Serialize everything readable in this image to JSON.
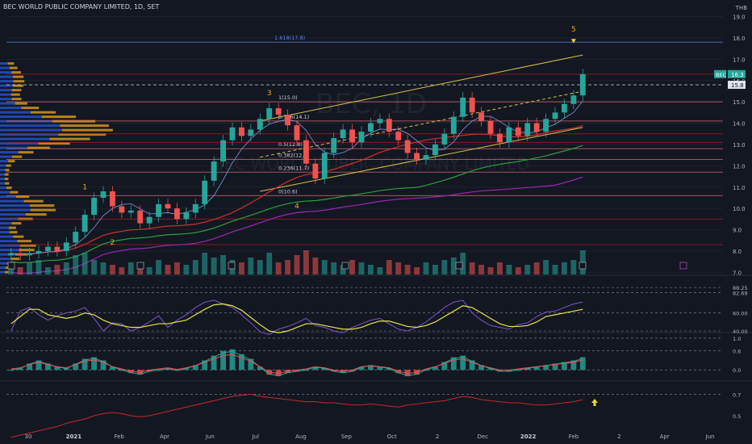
{
  "header": {
    "symbol_title": "BEC WORLD PUBLIC COMPANY LIMITED, 1D, SET",
    "currency": "THB"
  },
  "colors": {
    "bg": "#131722",
    "candle_up": "#26a69a",
    "candle_down": "#ef5350",
    "ma_red": "#d32f2f",
    "ma_green": "#2e9e3e",
    "ma_purple": "#9c27b0",
    "channel": "#d8c24a",
    "rsi": "#7e57c2",
    "rsi_signal": "#e9e44c",
    "fib_label": "#5b8def"
  },
  "watermark": {
    "big": "BEC, 1D",
    "small": "BEC WORLD PUBLIC COMPANY LIMITED"
  },
  "chart_data": {
    "type": "candlestick",
    "symbol": "BEC",
    "interval": "1D",
    "exchange": "SET",
    "y_axis_ticks": [
      "19.0",
      "18.0",
      "17.0",
      "16.0",
      "15.0",
      "14.0",
      "13.0",
      "12.0",
      "11.0",
      "10.0",
      "9.0",
      "8.0",
      "7.0"
    ],
    "ylim": [
      6.9,
      19.4
    ],
    "x_axis_labels": [
      "30",
      "2021",
      "Feb",
      "Apr",
      "Jun",
      "Jul",
      "Aug",
      "Sep",
      "Oct",
      "2",
      "Dec",
      "2022",
      "Feb",
      "2",
      "Apr",
      "Jun"
    ],
    "price_tags": [
      {
        "label": "BEC",
        "value": "16.3"
      },
      {
        "label": "",
        "value": "15.8"
      }
    ],
    "close_series": [
      7.9,
      7.8,
      7.9,
      8.0,
      8.2,
      8.0,
      8.4,
      8.9,
      9.7,
      10.5,
      10.8,
      10.1,
      9.8,
      9.9,
      9.3,
      9.6,
      10.2,
      10.0,
      9.5,
      9.8,
      10.2,
      11.3,
      12.2,
      13.2,
      13.8,
      13.4,
      13.7,
      14.2,
      14.7,
      14.4,
      13.9,
      13.2,
      12.1,
      11.4,
      12.6,
      13.3,
      13.7,
      13.1,
      13.6,
      14.0,
      14.2,
      13.6,
      13.2,
      12.6,
      12.3,
      12.5,
      13.0,
      13.5,
      14.3,
      15.2,
      14.5,
      14.1,
      13.5,
      13.1,
      13.8,
      13.4,
      14.0,
      13.6,
      14.2,
      14.5,
      14.9,
      15.3,
      16.3
    ],
    "fibonacci": [
      {
        "label": "1.618(17.8)",
        "value": 17.8
      },
      {
        "label": "1(15.0)",
        "value": 15.0
      },
      {
        "label": "0.786(14.1)",
        "value": 14.1
      },
      {
        "label": "0.5(12.8)",
        "value": 12.8
      },
      {
        "label": "0.382(12.3)",
        "value": 12.3
      },
      {
        "label": "0.236(11.7)",
        "value": 11.7
      },
      {
        "label": "0(10.6)",
        "value": 10.6
      }
    ],
    "wave_labels": [
      "1",
      "2",
      "3",
      "4",
      "5"
    ],
    "volume": [
      4,
      3,
      5,
      6,
      3,
      4,
      5,
      8,
      9,
      6,
      5,
      4,
      3,
      5,
      4,
      3,
      6,
      4,
      5,
      4,
      6,
      9,
      7,
      8,
      6,
      5,
      7,
      6,
      9,
      5,
      6,
      8,
      10,
      7,
      6,
      5,
      4,
      6,
      5,
      4,
      3,
      6,
      5,
      4,
      3,
      5,
      4,
      6,
      7,
      9,
      5,
      4,
      3,
      5,
      4,
      3,
      4,
      5,
      6,
      4,
      5,
      6,
      10
    ],
    "rsi": {
      "levels": [
        "88.25",
        "82.69",
        "60.00",
        "40.00"
      ],
      "series": [
        40,
        62,
        66,
        58,
        52,
        57,
        60,
        62,
        66,
        54,
        40,
        49,
        48,
        40,
        44,
        50,
        57,
        44,
        52,
        58,
        66,
        72,
        74,
        70,
        66,
        58,
        49,
        39,
        36,
        42,
        45,
        49,
        54,
        46,
        44,
        40,
        38,
        44,
        48,
        52,
        54,
        48,
        42,
        40,
        44,
        50,
        58,
        66,
        72,
        74,
        60,
        52,
        46,
        44,
        42,
        47,
        49,
        56,
        61,
        62,
        66,
        70,
        72
      ],
      "signal": [
        48,
        56,
        64,
        64,
        58,
        56,
        54,
        56,
        60,
        58,
        52,
        48,
        46,
        44,
        44,
        46,
        48,
        48,
        50,
        52,
        58,
        64,
        69,
        70,
        68,
        63,
        55,
        47,
        40,
        38,
        40,
        44,
        48,
        48,
        46,
        44,
        42,
        42,
        44,
        48,
        51,
        51,
        48,
        45,
        44,
        46,
        50,
        56,
        62,
        68,
        66,
        60,
        54,
        48,
        45,
        45,
        46,
        50,
        56,
        58,
        60,
        62,
        64
      ]
    },
    "macd": {
      "levels": [
        "1.0",
        "0.6",
        "0.0"
      ],
      "series": [
        0.0,
        0.05,
        0.2,
        0.3,
        0.2,
        0.1,
        0.05,
        0.2,
        0.35,
        0.4,
        0.3,
        0.1,
        0.0,
        -0.1,
        -0.15,
        -0.05,
        0.0,
        0.05,
        -0.02,
        0.05,
        0.15,
        0.3,
        0.45,
        0.6,
        0.65,
        0.5,
        0.35,
        0.1,
        -0.15,
        -0.2,
        -0.1,
        -0.05,
        0.0,
        0.1,
        0.05,
        -0.05,
        -0.1,
        -0.05,
        0.1,
        0.15,
        0.1,
        0.05,
        -0.1,
        -0.2,
        -0.15,
        0.0,
        0.1,
        0.25,
        0.4,
        0.45,
        0.3,
        0.15,
        0.05,
        -0.05,
        -0.05,
        0.0,
        0.05,
        0.1,
        0.15,
        0.2,
        0.25,
        0.3,
        0.4
      ]
    },
    "third": {
      "levels": [
        "0.7",
        "0.5"
      ],
      "series": [
        0.3,
        0.32,
        0.34,
        0.36,
        0.38,
        0.4,
        0.43,
        0.45,
        0.47,
        0.5,
        0.52,
        0.53,
        0.52,
        0.5,
        0.49,
        0.5,
        0.52,
        0.54,
        0.56,
        0.58,
        0.6,
        0.62,
        0.64,
        0.66,
        0.68,
        0.69,
        0.7,
        0.68,
        0.67,
        0.66,
        0.65,
        0.64,
        0.63,
        0.63,
        0.62,
        0.62,
        0.61,
        0.6,
        0.6,
        0.61,
        0.6,
        0.59,
        0.58,
        0.6,
        0.61,
        0.62,
        0.63,
        0.64,
        0.66,
        0.68,
        0.67,
        0.65,
        0.64,
        0.63,
        0.62,
        0.62,
        0.61,
        0.6,
        0.6,
        0.61,
        0.62,
        0.63,
        0.65
      ]
    }
  }
}
